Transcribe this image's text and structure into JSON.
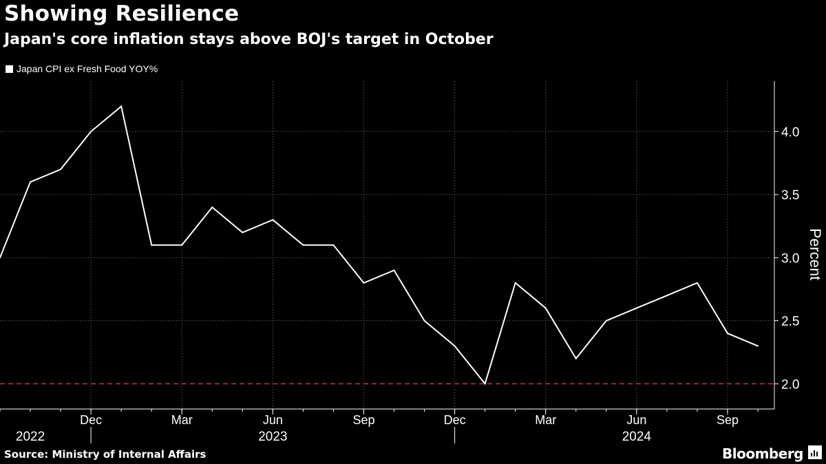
{
  "header": {
    "title": "Showing Resilience",
    "subtitle": "Japan's core inflation stays above BOJ's target in October"
  },
  "footer": {
    "source": "Source: Ministry of Internal Affairs",
    "brand": "Bloomberg"
  },
  "colors": {
    "background": "#000000",
    "line": "#ffffff",
    "grid": "#5a5a5a",
    "target_line": "#a0283c"
  },
  "icons": {
    "brand_icon": "bloomberg-chart-icon"
  },
  "chart_data": {
    "type": "line",
    "title": "Showing Resilience",
    "subtitle": "Japan's core inflation stays above BOJ's target in October",
    "ylabel": "Percent",
    "xlabel": "",
    "ylim": [
      1.8,
      4.4
    ],
    "yticks": [
      2.0,
      2.5,
      3.0,
      3.5,
      4.0
    ],
    "ytick_labels": [
      "2.0",
      "2.5",
      "3.0",
      "3.5",
      "4.0"
    ],
    "x_range": [
      "2022-09",
      "2024-10"
    ],
    "xticks": [
      {
        "date": "2022-12",
        "label": "Dec"
      },
      {
        "date": "2023-03",
        "label": "Mar"
      },
      {
        "date": "2023-06",
        "label": "Jun"
      },
      {
        "date": "2023-09",
        "label": "Sep"
      },
      {
        "date": "2023-12",
        "label": "Dec"
      },
      {
        "date": "2024-03",
        "label": "Mar"
      },
      {
        "date": "2024-06",
        "label": "Jun"
      },
      {
        "date": "2024-09",
        "label": "Sep"
      }
    ],
    "year_labels": [
      {
        "label": "2022",
        "center": "2022-10"
      },
      {
        "label": "2023",
        "center": "2023-06"
      },
      {
        "label": "2024",
        "center": "2024-06"
      }
    ],
    "year_dividers": [
      "2022-12",
      "2023-12"
    ],
    "grid": true,
    "legend": {
      "position": "top-left"
    },
    "series": [
      {
        "name": "Japan CPI ex Fresh Food YOY%",
        "x": [
          "2022-09",
          "2022-10",
          "2022-11",
          "2022-12",
          "2023-01",
          "2023-02",
          "2023-03",
          "2023-04",
          "2023-05",
          "2023-06",
          "2023-07",
          "2023-08",
          "2023-09",
          "2023-10",
          "2023-11",
          "2023-12",
          "2024-01",
          "2024-02",
          "2024-03",
          "2024-04",
          "2024-05",
          "2024-06",
          "2024-07",
          "2024-08",
          "2024-09",
          "2024-10"
        ],
        "values": [
          3.0,
          3.6,
          3.7,
          4.0,
          4.2,
          3.1,
          3.1,
          3.4,
          3.2,
          3.3,
          3.1,
          3.1,
          2.8,
          2.9,
          2.5,
          2.3,
          2.0,
          2.8,
          2.6,
          2.2,
          2.5,
          2.6,
          2.7,
          2.8,
          2.4,
          2.3
        ]
      }
    ],
    "reference_line": {
      "value": 2.0,
      "style": "dashed"
    }
  }
}
